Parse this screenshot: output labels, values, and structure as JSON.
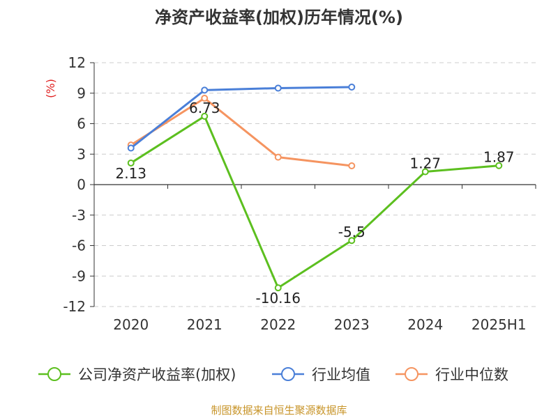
{
  "chart_data": {
    "type": "line",
    "title": "净资产收益率(加权)历年情况(%)",
    "ylabel": "(%)",
    "ylim": [
      -12,
      12
    ],
    "yticks": [
      12,
      9,
      6,
      3,
      0,
      -3,
      -6,
      -9,
      -12
    ],
    "categories": [
      "2020",
      "2021",
      "2022",
      "2023",
      "2024",
      "2025H1"
    ],
    "grid": true,
    "legend_position": "bottom",
    "series": [
      {
        "name": "公司净资产收益率(加权)",
        "color": "#5cbf1f",
        "values": [
          2.13,
          6.73,
          -10.16,
          -5.5,
          1.27,
          1.87
        ],
        "labels": [
          "2.13",
          "6.73",
          "-10.16",
          "-5.5",
          "1.27",
          "1.87"
        ]
      },
      {
        "name": "行业均值",
        "color": "#4a7fd8",
        "values": [
          3.6,
          9.3,
          9.5,
          9.6,
          null,
          null
        ]
      },
      {
        "name": "行业中位数",
        "color": "#f59460",
        "values": [
          3.9,
          8.5,
          2.7,
          1.85,
          null,
          null
        ]
      }
    ]
  },
  "ylabel_color": "#e02020",
  "source_text": "制图数据来自恒生聚源数据库",
  "source_color": "#c8952a"
}
